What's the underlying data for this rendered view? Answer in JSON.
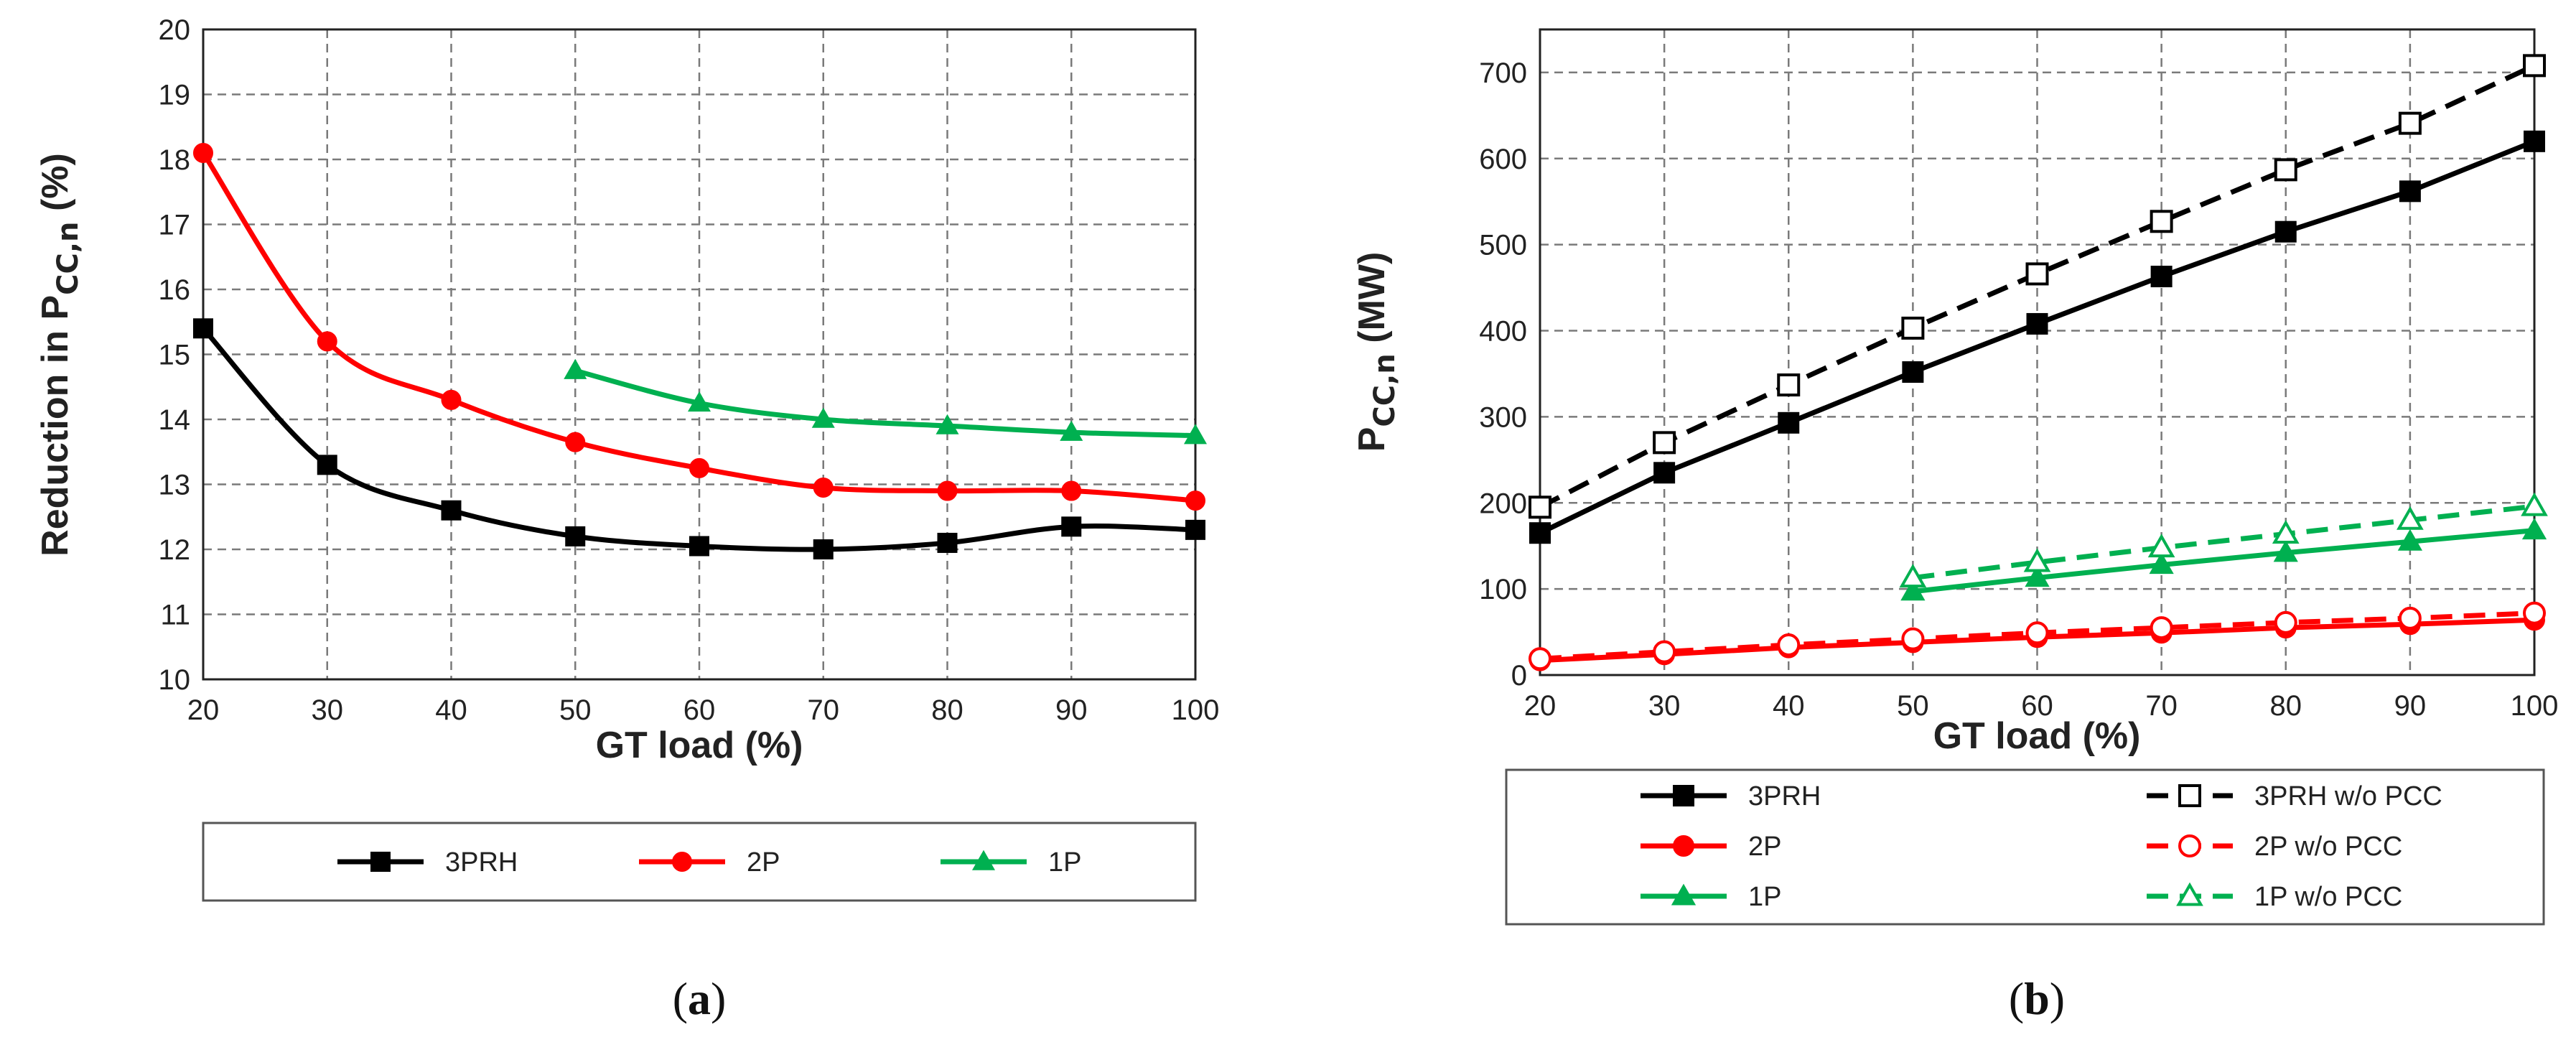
{
  "chart_data": [
    {
      "panel": "a",
      "type": "line",
      "panel_label": {
        "open": "(",
        "letter": "a",
        "close": ")"
      },
      "xlabel": "GT load (%)",
      "ylabel_main": "Reduction in P",
      "ylabel_sub": "CC,n",
      "ylabel_end": " (%)",
      "xlim": [
        20,
        100
      ],
      "ylim": [
        10,
        20
      ],
      "xticks": [
        20,
        30,
        40,
        50,
        60,
        70,
        80,
        90,
        100
      ],
      "yticks": [
        10,
        11,
        12,
        13,
        14,
        15,
        16,
        17,
        18,
        19,
        20
      ],
      "series": [
        {
          "name": "3PRH",
          "color": "#000000",
          "marker": "square",
          "filled": true,
          "dashed": false,
          "x": [
            20,
            30,
            40,
            50,
            60,
            70,
            80,
            90,
            100
          ],
          "y": [
            15.4,
            13.3,
            12.6,
            12.2,
            12.05,
            12.0,
            12.1,
            12.35,
            12.3
          ]
        },
        {
          "name": "2P",
          "color": "#ff0000",
          "marker": "circle",
          "filled": true,
          "dashed": false,
          "x": [
            20,
            30,
            40,
            50,
            60,
            70,
            80,
            90,
            100
          ],
          "y": [
            18.1,
            15.2,
            14.3,
            13.65,
            13.25,
            12.95,
            12.9,
            12.9,
            12.75
          ]
        },
        {
          "name": "1P",
          "color": "#00b050",
          "marker": "triangle",
          "filled": true,
          "dashed": false,
          "x": [
            50,
            60,
            70,
            80,
            90,
            100
          ],
          "y": [
            14.75,
            14.25,
            14.0,
            13.9,
            13.8,
            13.75
          ]
        }
      ]
    },
    {
      "panel": "b",
      "type": "line",
      "panel_label": {
        "open": "(",
        "letter": "b",
        "close": ")"
      },
      "xlabel": "GT load (%)",
      "ylabel_main": "P",
      "ylabel_sub": "CC,n",
      "ylabel_end": " (MW)",
      "xlim": [
        20,
        100
      ],
      "ylim": [
        0,
        750
      ],
      "xticks": [
        20,
        30,
        40,
        50,
        60,
        70,
        80,
        90,
        100
      ],
      "yticks": [
        0,
        100,
        200,
        300,
        400,
        500,
        600,
        700
      ],
      "series": [
        {
          "name": "3PRH",
          "color": "#000000",
          "marker": "square",
          "filled": true,
          "dashed": false,
          "x": [
            20,
            30,
            40,
            50,
            60,
            70,
            80,
            90,
            100
          ],
          "y": [
            165,
            235,
            293,
            352,
            408,
            463,
            515,
            562,
            620
          ]
        },
        {
          "name": "2P",
          "color": "#ff0000",
          "marker": "circle",
          "filled": true,
          "dashed": false,
          "x": [
            20,
            30,
            40,
            50,
            60,
            70,
            80,
            90,
            100
          ],
          "y": [
            17,
            24,
            32,
            38,
            44,
            49,
            55,
            59,
            64
          ]
        },
        {
          "name": "1P",
          "color": "#00b050",
          "marker": "triangle",
          "filled": true,
          "dashed": false,
          "x": [
            50,
            60,
            70,
            80,
            90,
            100
          ],
          "y": [
            97,
            113,
            128,
            142,
            155,
            168
          ]
        },
        {
          "name": "3PRH w/o PCC",
          "color": "#000000",
          "marker": "square",
          "filled": false,
          "dashed": true,
          "x": [
            20,
            30,
            40,
            50,
            60,
            70,
            80,
            90,
            100
          ],
          "y": [
            195,
            270,
            337,
            403,
            466,
            527,
            587,
            641,
            708
          ]
        },
        {
          "name": "2P w/o PCC",
          "color": "#ff0000",
          "marker": "circle",
          "filled": false,
          "dashed": true,
          "x": [
            20,
            30,
            40,
            50,
            60,
            70,
            80,
            90,
            100
          ],
          "y": [
            19,
            27,
            35,
            42,
            49,
            55,
            61,
            66,
            72
          ]
        },
        {
          "name": "1P w/o PCC",
          "color": "#00b050",
          "marker": "triangle",
          "filled": false,
          "dashed": true,
          "x": [
            50,
            60,
            70,
            80,
            90,
            100
          ],
          "y": [
            113,
            131,
            148,
            164,
            180,
            196
          ]
        }
      ]
    }
  ]
}
